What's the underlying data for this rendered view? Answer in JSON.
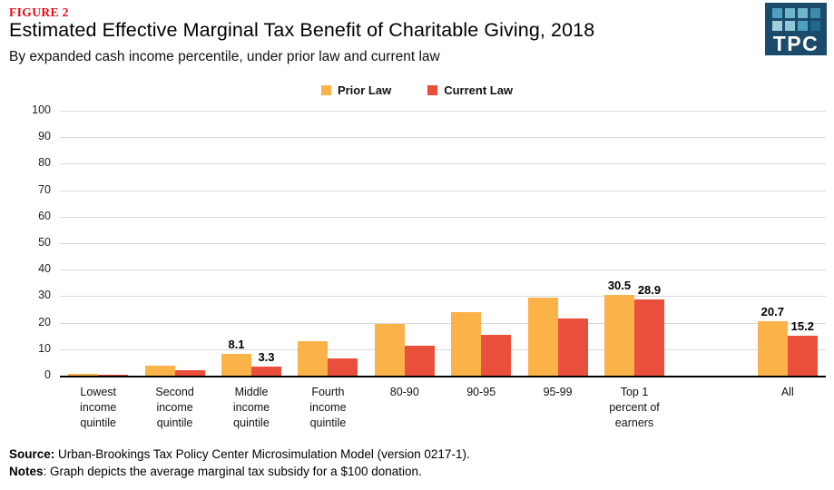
{
  "figure_label": "FIGURE 2",
  "figure_label_color": "#e80816",
  "title": "Estimated Effective Marginal Tax Benefit of Charitable Giving, 2018",
  "subtitle": "By expanded cash income percentile, under prior law and current law",
  "logo": {
    "text": "TPC",
    "bg": "#1b4a6b",
    "squares": [
      [
        "#4da0c0",
        "#6fb7cb",
        "#6fb7cb",
        "#3d8bac"
      ],
      [
        "#a3cfdd",
        "#90c6d6",
        "#4da0c0",
        "#20688f"
      ]
    ]
  },
  "legend": [
    {
      "label": "Prior Law",
      "color": "#fbb249"
    },
    {
      "label": "Current Law",
      "color": "#ea4f3b"
    }
  ],
  "chart_data": {
    "type": "bar",
    "title": "Estimated Effective Marginal Tax Benefit of Charitable Giving, 2018",
    "subtitle": "By expanded cash income percentile, under prior law and current law",
    "xlabel": "",
    "ylabel": "",
    "ylim": [
      0,
      100
    ],
    "yticks": [
      0,
      10,
      20,
      30,
      40,
      50,
      60,
      70,
      80,
      90,
      100
    ],
    "grid": true,
    "legend_position": "top-center",
    "categories": [
      "Lowest income quintile",
      "Second income quintile",
      "Middle income quintile",
      "Fourth income quintile",
      "80-90",
      "90-95",
      "95-99",
      "Top 1 percent of earners",
      "All"
    ],
    "category_lines": [
      [
        "Lowest",
        "income",
        "quintile"
      ],
      [
        "Second",
        "income",
        "quintile"
      ],
      [
        "Middle",
        "income",
        "quintile"
      ],
      [
        "Fourth",
        "income",
        "quintile"
      ],
      [
        "80-90"
      ],
      [
        "90-95"
      ],
      [
        "95-99"
      ],
      [
        "Top 1",
        "percent of",
        "earners"
      ],
      [
        "All"
      ]
    ],
    "series": [
      {
        "name": "Prior Law",
        "color": "#fbb249",
        "values": [
          0.8,
          3.9,
          8.1,
          13.0,
          19.6,
          23.9,
          29.5,
          30.5,
          20.7
        ]
      },
      {
        "name": "Current Law",
        "color": "#ea4f3b",
        "values": [
          0.4,
          1.9,
          3.3,
          6.5,
          11.3,
          15.3,
          21.5,
          28.9,
          15.2
        ]
      }
    ],
    "data_label_indices": [
      2,
      7,
      8
    ],
    "layout": {
      "num_slots": 10,
      "slot_of_category": [
        0,
        1,
        2,
        3,
        4,
        5,
        6,
        7,
        9
      ]
    }
  },
  "footer": {
    "source_label": "Source:",
    "source_text": " Urban-Brookings Tax Policy Center Microsimulation Model (version 0217-1).",
    "notes_label": "Notes",
    "notes_text": ": Graph depicts the average marginal tax subsidy for a $100 donation."
  }
}
